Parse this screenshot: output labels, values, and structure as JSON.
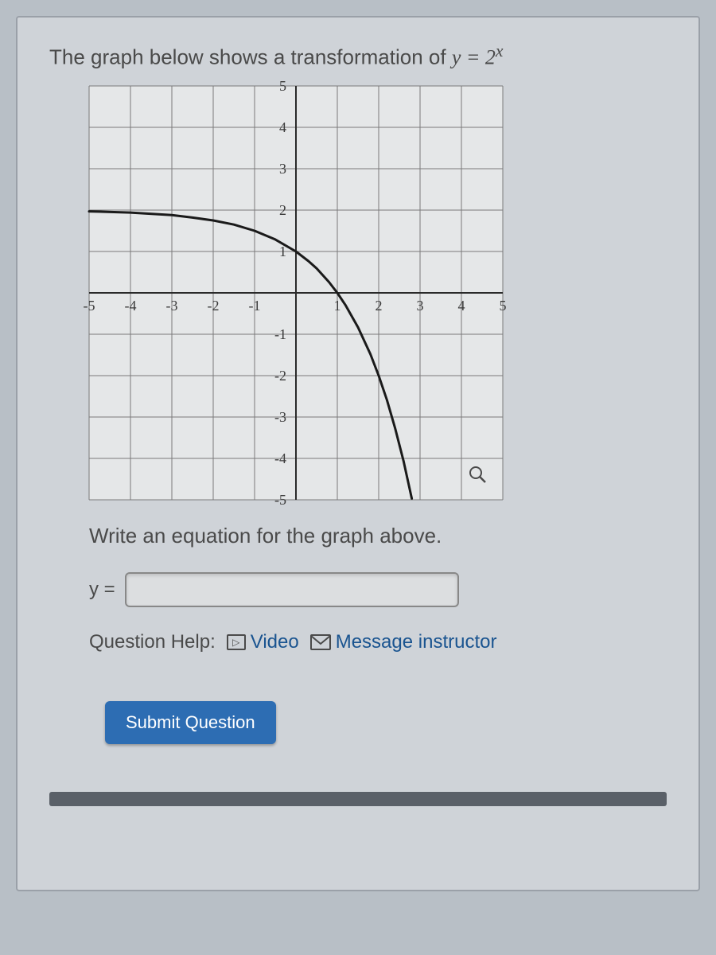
{
  "question": {
    "intro_text": "The graph below shows a transformation of ",
    "equation_lhs": "y",
    "equation_eq": " = ",
    "equation_base": "2",
    "equation_exp": "x"
  },
  "graph": {
    "type": "line",
    "xlim": [
      -5,
      5
    ],
    "ylim": [
      -5,
      5
    ],
    "xtick_step": 1,
    "ytick_step": 1,
    "x_labels": [
      "-5",
      "-4",
      "-3",
      "-2",
      "-1",
      "1",
      "2",
      "3",
      "4",
      "5"
    ],
    "y_labels": [
      "-5",
      "-4",
      "-3",
      "-2",
      "-1",
      "1",
      "2",
      "3",
      "4",
      "5"
    ],
    "background_color": "#e5e7e8",
    "grid_color": "#7a7a7a",
    "grid_width": 1,
    "axis_color": "#2a2a2a",
    "axis_width": 2,
    "curve_color": "#1a1a1a",
    "curve_width": 3,
    "label_fontsize": 18,
    "label_font": "Comic Sans MS, cursive",
    "curve_points": [
      [
        -5,
        1.97
      ],
      [
        -4,
        1.94
      ],
      [
        -3,
        1.88
      ],
      [
        -2.5,
        1.82
      ],
      [
        -2,
        1.75
      ],
      [
        -1.5,
        1.65
      ],
      [
        -1,
        1.5
      ],
      [
        -0.5,
        1.29
      ],
      [
        0,
        1
      ],
      [
        0.3,
        0.77
      ],
      [
        0.5,
        0.59
      ],
      [
        0.8,
        0.26
      ],
      [
        1,
        0
      ],
      [
        1.2,
        -0.3
      ],
      [
        1.5,
        -0.83
      ],
      [
        1.8,
        -1.48
      ],
      [
        2,
        -2
      ],
      [
        2.2,
        -2.59
      ],
      [
        2.4,
        -3.28
      ],
      [
        2.6,
        -4.06
      ],
      [
        2.8,
        -4.97
      ]
    ]
  },
  "prompt": "Write an equation for the graph above.",
  "answer": {
    "label": "y =",
    "value": ""
  },
  "help": {
    "label": "Question Help:",
    "video": "Video",
    "message": "Message instructor"
  },
  "submit_label": "Submit Question",
  "colors": {
    "page_bg": "#b8bfc6",
    "panel_bg": "#cfd3d8",
    "text": "#4a4a4a",
    "link": "#1a5490",
    "button_bg": "#2d6db3"
  }
}
